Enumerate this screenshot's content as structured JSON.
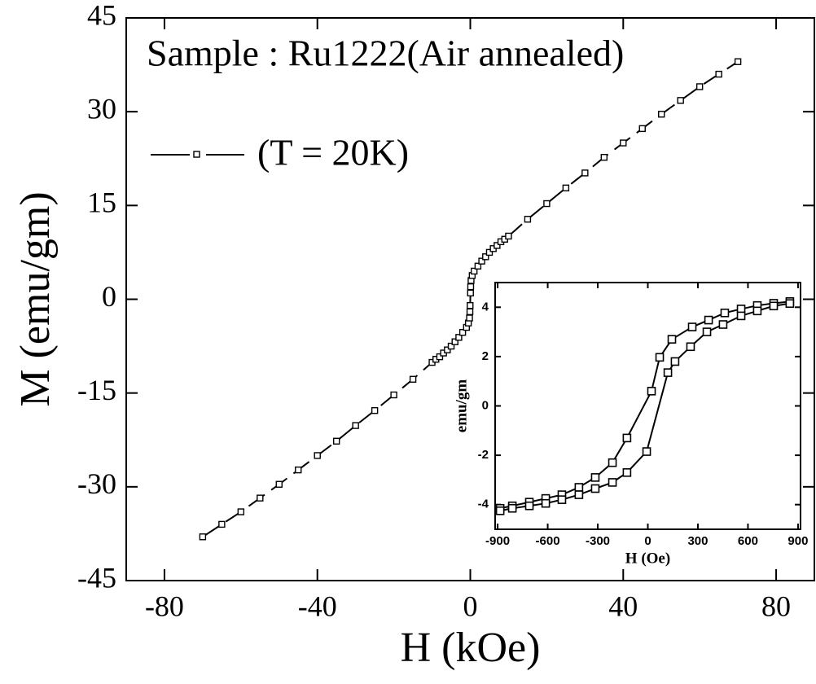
{
  "chart_data": [
    {
      "type": "line",
      "title": "Sample : Ru1222(Air annealed)",
      "x_label": "H (kOe)",
      "y_label": "M (emu/gm)",
      "xlim": [
        -90,
        90
      ],
      "ylim": [
        -45,
        45
      ],
      "xticks": [
        -80,
        -40,
        0,
        40,
        80
      ],
      "yticks": [
        -45,
        -30,
        -15,
        0,
        15,
        30,
        45
      ],
      "x": [
        -70,
        -65,
        -60,
        -55,
        -50,
        -45,
        -40,
        -35,
        -30,
        -25,
        -20,
        -15,
        -10,
        -9,
        -8,
        -7,
        -6,
        -5,
        -4,
        -3,
        -2,
        -1,
        -0.5,
        -0.2,
        -0.1,
        -0.05,
        0.05,
        0.1,
        0.2,
        0.5,
        1,
        2,
        3,
        4,
        5,
        6,
        7,
        8,
        9,
        10,
        15,
        20,
        25,
        30,
        35,
        40,
        45,
        50,
        55,
        60,
        65,
        70
      ],
      "series": [
        {
          "name": "(T = 20K)",
          "color": "#000000",
          "values": [
            -38,
            -36,
            -34,
            -31.8,
            -29.6,
            -27.3,
            -25,
            -22.7,
            -20.2,
            -17.8,
            -15.3,
            -12.8,
            -10.1,
            -9.6,
            -9.2,
            -8.6,
            -8.1,
            -7.5,
            -6.8,
            -6.1,
            -5.3,
            -4.5,
            -3.8,
            -3.0,
            -2.0,
            -1.0,
            1.0,
            2.0,
            3.0,
            3.8,
            4.5,
            5.3,
            6.1,
            6.8,
            7.5,
            8.1,
            8.6,
            9.2,
            9.6,
            10.1,
            12.8,
            15.3,
            17.8,
            20.2,
            22.7,
            25,
            27.3,
            29.6,
            31.8,
            34,
            36,
            38
          ]
        }
      ]
    },
    {
      "type": "line",
      "x_label": "H (Oe)",
      "y_label": "emu/gm",
      "xlim": [
        -915,
        915
      ],
      "ylim": [
        -5,
        5
      ],
      "xticks": [
        -900,
        -600,
        -300,
        0,
        300,
        600,
        900
      ],
      "yticks": [
        -4,
        -2,
        0,
        2,
        4
      ],
      "series": [
        {
          "color": "#000000",
          "x": [
            851,
            754,
            656,
            559,
            461,
            364,
            266,
            144,
            71,
            22,
            -125,
            -212,
            -315,
            -413,
            -515,
            -612,
            -710,
            -812,
            -885
          ],
          "values": [
            4.23,
            4.16,
            4.07,
            3.93,
            3.77,
            3.48,
            3.2,
            2.7,
            1.97,
            0.6,
            -1.3,
            -2.3,
            -2.9,
            -3.3,
            -3.6,
            -3.75,
            -3.9,
            -4.05,
            -4.15
          ]
        },
        {
          "color": "#000000",
          "x": [
            -885,
            -812,
            -710,
            -612,
            -515,
            -413,
            -315,
            -212,
            -125,
            -7,
            120,
            163,
            256,
            354,
            451,
            559,
            656,
            754,
            851
          ],
          "values": [
            -4.25,
            -4.15,
            -4.05,
            -3.95,
            -3.8,
            -3.6,
            -3.35,
            -3.1,
            -2.7,
            -1.85,
            1.35,
            1.8,
            2.4,
            3.0,
            3.3,
            3.65,
            3.85,
            4.05,
            4.15
          ]
        }
      ]
    }
  ]
}
